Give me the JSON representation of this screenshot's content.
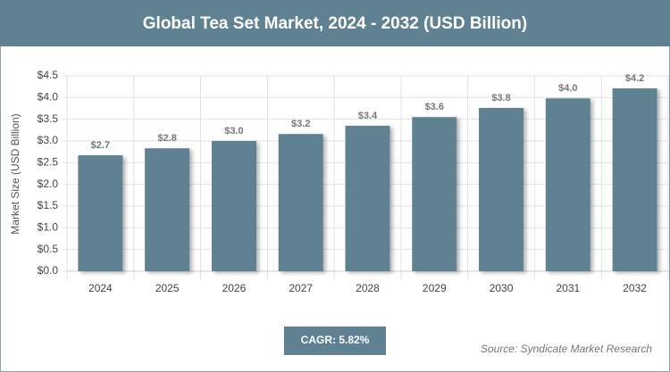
{
  "chart_data": {
    "type": "bar",
    "title": "Global Tea Set Market, 2024 - 2032 (USD Billion)",
    "y_label": "Market Size (USD Billion)",
    "categories": [
      "2024",
      "2025",
      "2026",
      "2027",
      "2028",
      "2029",
      "2030",
      "2031",
      "2032"
    ],
    "values": [
      2.67,
      2.83,
      3.0,
      3.16,
      3.35,
      3.55,
      3.76,
      3.98,
      4.21
    ],
    "value_labels": [
      "$2.7",
      "$2.8",
      "$3.0",
      "$3.2",
      "$3.4",
      "$3.6",
      "$3.8",
      "$4.0",
      "$4.2"
    ],
    "color": "#5f8191",
    "ylim": [
      0,
      4.5
    ],
    "yticks": [
      {
        "value": 0,
        "label": "$0.0"
      },
      {
        "value": 0.5,
        "label": "$0.5"
      },
      {
        "value": 1,
        "label": "$1.0"
      },
      {
        "value": 1.5,
        "label": "$1.5"
      },
      {
        "value": 2,
        "label": "$2.0"
      },
      {
        "value": 2.5,
        "label": "$2.5"
      },
      {
        "value": 3,
        "label": "$3.0"
      },
      {
        "value": 3.5,
        "label": "$3.5"
      },
      {
        "value": 4,
        "label": "$4.0"
      },
      {
        "value": 4.5,
        "label": "$4.5"
      }
    ],
    "grid": true,
    "cagr_label": "CAGR: 5.82%",
    "source": "Source: Syndicate Market Research"
  }
}
